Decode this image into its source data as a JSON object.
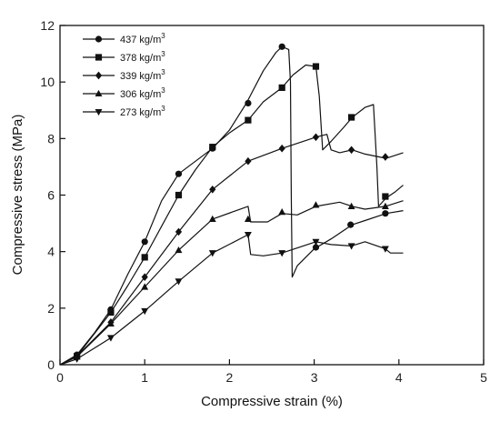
{
  "chart_data": {
    "type": "line",
    "xlabel": "Compressive strain (%)",
    "ylabel": "Compressive stress (MPa)",
    "xlim": [
      0,
      5
    ],
    "ylim": [
      0,
      12
    ],
    "xticks": [
      "0",
      "1",
      "2",
      "3",
      "4",
      "5"
    ],
    "yticks": [
      "0",
      "2",
      "4",
      "6",
      "8",
      "10",
      "12"
    ],
    "grid": false,
    "legend_position": "top-left",
    "series": [
      {
        "name": "437 kg/m",
        "name_sup": "3",
        "marker": "circle",
        "points": [
          [
            0.0,
            0.0
          ],
          [
            0.2,
            0.35
          ],
          [
            0.4,
            1.1
          ],
          [
            0.6,
            1.95
          ],
          [
            0.8,
            3.2
          ],
          [
            1.0,
            4.35
          ],
          [
            1.2,
            5.8
          ],
          [
            1.4,
            6.75
          ],
          [
            1.6,
            7.2
          ],
          [
            1.8,
            7.65
          ],
          [
            2.0,
            8.3
          ],
          [
            2.2,
            9.25
          ],
          [
            2.4,
            10.4
          ],
          [
            2.55,
            11.05
          ],
          [
            2.62,
            11.25
          ],
          [
            2.7,
            11.15
          ],
          [
            2.72,
            10.0
          ],
          [
            2.73,
            6.0
          ],
          [
            2.74,
            3.1
          ],
          [
            2.8,
            3.5
          ],
          [
            3.0,
            4.1
          ],
          [
            3.2,
            4.45
          ],
          [
            3.45,
            4.95
          ],
          [
            3.6,
            5.1
          ],
          [
            3.85,
            5.35
          ],
          [
            4.05,
            5.45
          ]
        ],
        "marker_points": [
          [
            0.2,
            0.35
          ],
          [
            0.6,
            1.95
          ],
          [
            1.0,
            4.35
          ],
          [
            1.4,
            6.75
          ],
          [
            1.8,
            7.65
          ],
          [
            2.22,
            9.25
          ],
          [
            2.62,
            11.25
          ],
          [
            3.02,
            4.15
          ],
          [
            3.43,
            4.95
          ],
          [
            3.84,
            5.35
          ]
        ]
      },
      {
        "name": "378 kg/m",
        "name_sup": "3",
        "marker": "square",
        "points": [
          [
            0.0,
            0.0
          ],
          [
            0.2,
            0.3
          ],
          [
            0.6,
            1.85
          ],
          [
            0.8,
            2.8
          ],
          [
            1.0,
            3.8
          ],
          [
            1.2,
            4.9
          ],
          [
            1.4,
            6.0
          ],
          [
            1.6,
            6.9
          ],
          [
            1.8,
            7.7
          ],
          [
            2.0,
            8.2
          ],
          [
            2.22,
            8.65
          ],
          [
            2.4,
            9.3
          ],
          [
            2.62,
            9.8
          ],
          [
            2.75,
            10.25
          ],
          [
            2.9,
            10.6
          ],
          [
            3.02,
            10.55
          ],
          [
            3.06,
            9.5
          ],
          [
            3.1,
            7.6
          ],
          [
            3.2,
            7.9
          ],
          [
            3.35,
            8.4
          ],
          [
            3.45,
            8.75
          ],
          [
            3.6,
            9.1
          ],
          [
            3.7,
            9.2
          ],
          [
            3.74,
            7.0
          ],
          [
            3.76,
            5.6
          ],
          [
            3.85,
            5.9
          ],
          [
            3.95,
            6.1
          ],
          [
            4.05,
            6.35
          ]
        ],
        "marker_points": [
          [
            0.2,
            0.3
          ],
          [
            0.6,
            1.85
          ],
          [
            1.0,
            3.8
          ],
          [
            1.4,
            6.0
          ],
          [
            1.8,
            7.7
          ],
          [
            2.22,
            8.65
          ],
          [
            2.62,
            9.8
          ],
          [
            3.02,
            10.55
          ],
          [
            3.44,
            8.75
          ],
          [
            3.84,
            5.95
          ]
        ]
      },
      {
        "name": "339 kg/m",
        "name_sup": "3",
        "marker": "diamond",
        "points": [
          [
            0.0,
            0.0
          ],
          [
            0.2,
            0.3
          ],
          [
            0.6,
            1.5
          ],
          [
            1.0,
            3.1
          ],
          [
            1.4,
            4.7
          ],
          [
            1.8,
            6.2
          ],
          [
            2.22,
            7.2
          ],
          [
            2.62,
            7.65
          ],
          [
            3.02,
            8.05
          ],
          [
            3.15,
            8.15
          ],
          [
            3.2,
            7.6
          ],
          [
            3.3,
            7.5
          ],
          [
            3.45,
            7.6
          ],
          [
            3.6,
            7.45
          ],
          [
            3.85,
            7.3
          ],
          [
            4.05,
            7.5
          ]
        ],
        "marker_points": [
          [
            0.2,
            0.3
          ],
          [
            0.6,
            1.5
          ],
          [
            1.0,
            3.1
          ],
          [
            1.4,
            4.7
          ],
          [
            1.8,
            6.2
          ],
          [
            2.22,
            7.2
          ],
          [
            2.62,
            7.65
          ],
          [
            3.02,
            8.05
          ],
          [
            3.44,
            7.6
          ],
          [
            3.84,
            7.35
          ]
        ]
      },
      {
        "name": "306 kg/m",
        "name_sup": "3",
        "marker": "triangle-up",
        "points": [
          [
            0.0,
            0.0
          ],
          [
            0.2,
            0.28
          ],
          [
            0.6,
            1.45
          ],
          [
            1.0,
            2.75
          ],
          [
            1.4,
            4.05
          ],
          [
            1.8,
            5.15
          ],
          [
            2.22,
            5.6
          ],
          [
            2.25,
            5.05
          ],
          [
            2.45,
            5.05
          ],
          [
            2.62,
            5.35
          ],
          [
            2.8,
            5.3
          ],
          [
            3.02,
            5.6
          ],
          [
            3.3,
            5.75
          ],
          [
            3.45,
            5.6
          ],
          [
            3.6,
            5.5
          ],
          [
            3.84,
            5.6
          ],
          [
            4.05,
            5.8
          ]
        ],
        "marker_points": [
          [
            0.2,
            0.28
          ],
          [
            0.6,
            1.45
          ],
          [
            1.0,
            2.75
          ],
          [
            1.4,
            4.05
          ],
          [
            1.8,
            5.15
          ],
          [
            2.22,
            5.15
          ],
          [
            2.62,
            5.4
          ],
          [
            3.02,
            5.65
          ],
          [
            3.44,
            5.6
          ],
          [
            3.84,
            5.6
          ]
        ]
      },
      {
        "name": "273 kg/m",
        "name_sup": "3",
        "marker": "triangle-down",
        "points": [
          [
            0.0,
            0.0
          ],
          [
            0.2,
            0.2
          ],
          [
            0.6,
            0.95
          ],
          [
            1.0,
            1.9
          ],
          [
            1.4,
            2.95
          ],
          [
            1.8,
            3.95
          ],
          [
            2.22,
            4.6
          ],
          [
            2.25,
            3.9
          ],
          [
            2.4,
            3.85
          ],
          [
            2.62,
            3.95
          ],
          [
            3.02,
            4.35
          ],
          [
            3.2,
            4.25
          ],
          [
            3.44,
            4.2
          ],
          [
            3.6,
            4.35
          ],
          [
            3.84,
            4.1
          ],
          [
            3.9,
            3.95
          ],
          [
            4.05,
            3.95
          ]
        ],
        "marker_points": [
          [
            0.2,
            0.2
          ],
          [
            0.6,
            0.95
          ],
          [
            1.0,
            1.9
          ],
          [
            1.4,
            2.95
          ],
          [
            1.8,
            3.95
          ],
          [
            2.22,
            4.6
          ],
          [
            2.62,
            3.95
          ],
          [
            3.02,
            4.35
          ],
          [
            3.44,
            4.2
          ],
          [
            3.84,
            4.1
          ]
        ]
      }
    ]
  }
}
